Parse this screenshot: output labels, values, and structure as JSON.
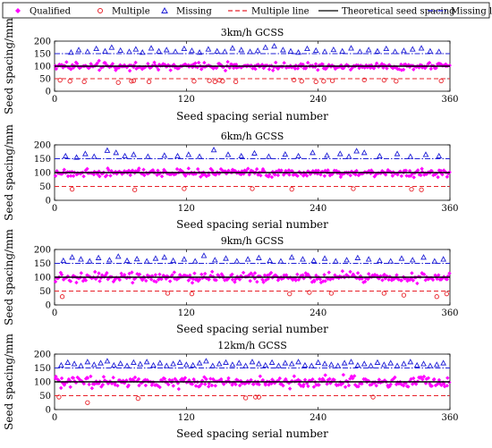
{
  "legend": {
    "items": [
      {
        "key": "qualified",
        "label": "Qualified",
        "color": "#ff00ff",
        "marker": "diamond"
      },
      {
        "key": "multiple",
        "label": "Multiple",
        "color": "#e8222a",
        "marker": "circle-open"
      },
      {
        "key": "missing",
        "label": "Missing",
        "color": "#1f1fd6",
        "marker": "triangle-open"
      },
      {
        "key": "multiple_line",
        "label": "Multiple line",
        "color": "#e8222a",
        "line": "dashed"
      },
      {
        "key": "theoretical",
        "label": "Theoretical seed spacing",
        "color": "#000000",
        "line": "solid"
      },
      {
        "key": "missing_line",
        "label": "Missing line",
        "color": "#1f1fd6",
        "line": "dash-dot"
      }
    ]
  },
  "chart_data": [
    {
      "type": "scatter",
      "title": "3km/h GCSS",
      "xlabel": "Seed spacing serial number",
      "ylabel": "Seed spacing/mm",
      "xlim": [
        0,
        360
      ],
      "ylim": [
        0,
        200
      ],
      "xticks": [
        "0",
        "120",
        "240",
        "360"
      ],
      "yticks": [
        "0",
        "50",
        "100",
        "150",
        "200"
      ],
      "reference_lines": {
        "multiple_line": 50,
        "theoretical_seed_spacing": 100,
        "missing_line": 150
      },
      "series": [
        {
          "name": "Qualified",
          "y_mean": 100,
          "y_spread": 18,
          "count": 300
        },
        {
          "name": "Multiple",
          "x": [
            5,
            14,
            27,
            58,
            70,
            72,
            86,
            127,
            141,
            146,
            150,
            153,
            165,
            218,
            225,
            238,
            245,
            253,
            282,
            300,
            311,
            352
          ],
          "y": [
            44,
            40,
            38,
            35,
            40,
            42,
            38,
            40,
            42,
            38,
            44,
            40,
            38,
            45,
            40,
            38,
            40,
            42,
            45,
            44,
            40,
            41
          ]
        },
        {
          "name": "Missing",
          "x": [
            15,
            22,
            30,
            38,
            46,
            52,
            60,
            68,
            74,
            80,
            88,
            95,
            102,
            110,
            118,
            125,
            132,
            140,
            148,
            155,
            162,
            170,
            178,
            185,
            192,
            200,
            208,
            215,
            222,
            230,
            238,
            246,
            254,
            262,
            270,
            278,
            286,
            294,
            302,
            310,
            318,
            326,
            334,
            342,
            350
          ],
          "y": [
            155,
            165,
            158,
            170,
            160,
            175,
            163,
            158,
            168,
            155,
            172,
            160,
            165,
            158,
            170,
            162,
            155,
            168,
            160,
            158,
            172,
            165,
            158,
            162,
            175,
            180,
            165,
            160,
            155,
            170,
            163,
            158,
            166,
            160,
            172,
            158,
            165,
            160,
            170,
            158,
            162,
            168,
            172,
            160,
            158
          ]
        }
      ]
    },
    {
      "type": "scatter",
      "title": "6km/h GCSS",
      "xlabel": "Seed spacing serial number",
      "ylabel": "Seed spacing/mm",
      "xlim": [
        0,
        360
      ],
      "ylim": [
        0,
        200
      ],
      "xticks": [
        "0",
        "120",
        "240",
        "360"
      ],
      "yticks": [
        "0",
        "50",
        "100",
        "150",
        "200"
      ],
      "reference_lines": {
        "multiple_line": 50,
        "theoretical_seed_spacing": 100,
        "missing_line": 150
      },
      "series": [
        {
          "name": "Qualified",
          "y_mean": 100,
          "y_spread": 17,
          "count": 300
        },
        {
          "name": "Multiple",
          "x": [
            16,
            73,
            118,
            180,
            216,
            272,
            325,
            334
          ],
          "y": [
            40,
            38,
            42,
            42,
            40,
            42,
            40,
            38
          ]
        },
        {
          "name": "Missing",
          "x": [
            10,
            20,
            28,
            36,
            48,
            56,
            64,
            72,
            85,
            100,
            112,
            122,
            132,
            145,
            158,
            170,
            182,
            195,
            210,
            222,
            235,
            248,
            260,
            268,
            275,
            282,
            296,
            312,
            324,
            338,
            350
          ],
          "y": [
            160,
            155,
            168,
            158,
            180,
            172,
            160,
            165,
            158,
            162,
            160,
            165,
            158,
            182,
            165,
            160,
            170,
            158,
            166,
            160,
            172,
            162,
            168,
            158,
            178,
            172,
            160,
            168,
            158,
            165,
            160
          ]
        }
      ]
    },
    {
      "type": "scatter",
      "title": "9km/h GCSS",
      "xlabel": "Seed spacing serial number",
      "ylabel": "Seed spacing/mm",
      "xlim": [
        0,
        360
      ],
      "ylim": [
        0,
        200
      ],
      "xticks": [
        "0",
        "120",
        "240",
        "360"
      ],
      "yticks": [
        "0",
        "50",
        "100",
        "150",
        "200"
      ],
      "reference_lines": {
        "multiple_line": 50,
        "theoretical_seed_spacing": 100,
        "missing_line": 150
      },
      "series": [
        {
          "name": "Qualified",
          "y_mean": 100,
          "y_spread": 20,
          "count": 300
        },
        {
          "name": "Multiple",
          "x": [
            7,
            103,
            125,
            214,
            232,
            252,
            300,
            318,
            348,
            357
          ],
          "y": [
            30,
            42,
            40,
            40,
            45,
            42,
            42,
            35,
            30,
            40
          ]
        },
        {
          "name": "Missing",
          "x": [
            8,
            16,
            24,
            32,
            40,
            50,
            58,
            66,
            75,
            84,
            92,
            100,
            108,
            118,
            128,
            136,
            146,
            156,
            166,
            176,
            186,
            196,
            206,
            216,
            226,
            236,
            246,
            256,
            266,
            276,
            286,
            296,
            306,
            316,
            326,
            336,
            346,
            354
          ],
          "y": [
            160,
            172,
            165,
            158,
            170,
            162,
            175,
            160,
            166,
            158,
            168,
            172,
            160,
            165,
            158,
            178,
            162,
            168,
            158,
            165,
            170,
            160,
            158,
            172,
            165,
            160,
            168,
            158,
            162,
            170,
            165,
            160,
            158,
            168,
            162,
            172,
            158,
            165
          ]
        }
      ]
    },
    {
      "type": "scatter",
      "title": "12km/h GCSS",
      "xlabel": "Seed spacing serial number",
      "ylabel": "Seed spacing/mm",
      "xlim": [
        0,
        360
      ],
      "ylim": [
        0,
        200
      ],
      "xticks": [
        "0",
        "120",
        "240",
        "360"
      ],
      "yticks": [
        "0",
        "50",
        "100",
        "150",
        "200"
      ],
      "reference_lines": {
        "multiple_line": 50,
        "theoretical_seed_spacing": 100,
        "missing_line": 150
      },
      "series": [
        {
          "name": "Qualified",
          "y_mean": 100,
          "y_spread": 24,
          "count": 300
        },
        {
          "name": "Multiple",
          "x": [
            4,
            30,
            76,
            174,
            183,
            186,
            290
          ],
          "y": [
            45,
            25,
            40,
            42,
            45,
            45,
            45
          ]
        },
        {
          "name": "Missing",
          "x": [
            6,
            12,
            18,
            24,
            30,
            36,
            42,
            48,
            54,
            60,
            66,
            72,
            78,
            84,
            90,
            96,
            102,
            108,
            114,
            120,
            126,
            132,
            138,
            144,
            150,
            156,
            162,
            168,
            174,
            180,
            186,
            192,
            198,
            204,
            210,
            216,
            222,
            228,
            234,
            240,
            246,
            252,
            258,
            264,
            270,
            276,
            282,
            288,
            294,
            300,
            306,
            312,
            318,
            324,
            330,
            336,
            342,
            348,
            354
          ],
          "y": [
            160,
            170,
            165,
            158,
            172,
            162,
            168,
            175,
            160,
            166,
            158,
            170,
            164,
            172,
            160,
            168,
            158,
            165,
            170,
            162,
            160,
            168,
            175,
            158,
            165,
            170,
            162,
            168,
            158,
            172,
            165,
            160,
            170,
            158,
            168,
            165,
            172,
            160,
            158,
            170,
            165,
            162,
            158,
            168,
            172,
            160,
            165,
            158,
            170,
            162,
            168,
            158,
            165,
            172,
            160,
            165,
            158,
            162,
            168
          ]
        }
      ]
    }
  ]
}
